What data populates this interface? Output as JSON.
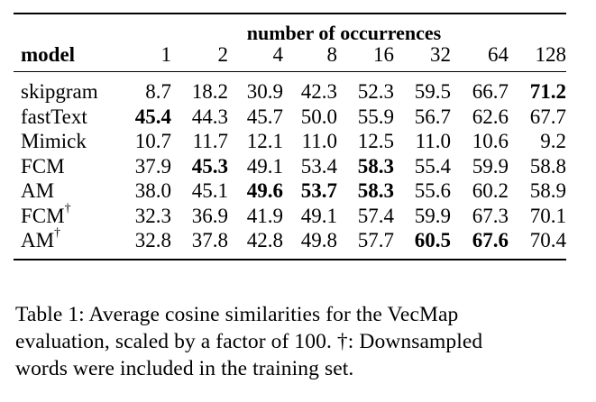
{
  "table": {
    "group_header": "number of occurrences",
    "model_header": "model",
    "columns": [
      "1",
      "2",
      "4",
      "8",
      "16",
      "32",
      "64",
      "128"
    ],
    "rows": [
      {
        "model": "skipgram",
        "dagger": "",
        "values": [
          "8.7",
          "18.2",
          "30.9",
          "42.3",
          "52.3",
          "59.5",
          "66.7",
          "71.2"
        ],
        "bold": [
          false,
          false,
          false,
          false,
          false,
          false,
          false,
          true
        ]
      },
      {
        "model": "fastText",
        "dagger": "",
        "values": [
          "45.4",
          "44.3",
          "45.7",
          "50.0",
          "55.9",
          "56.7",
          "62.6",
          "67.7"
        ],
        "bold": [
          true,
          false,
          false,
          false,
          false,
          false,
          false,
          false
        ]
      },
      {
        "model": "Mimick",
        "dagger": "",
        "values": [
          "10.7",
          "11.7",
          "12.1",
          "11.0",
          "12.5",
          "11.0",
          "10.6",
          "9.2"
        ],
        "bold": [
          false,
          false,
          false,
          false,
          false,
          false,
          false,
          false
        ]
      },
      {
        "model": "FCM",
        "dagger": "",
        "values": [
          "37.9",
          "45.3",
          "49.1",
          "53.4",
          "58.3",
          "55.4",
          "59.9",
          "58.8"
        ],
        "bold": [
          false,
          true,
          false,
          false,
          true,
          false,
          false,
          false
        ]
      },
      {
        "model": "AM",
        "dagger": "",
        "values": [
          "38.0",
          "45.1",
          "49.6",
          "53.7",
          "58.3",
          "55.6",
          "60.2",
          "58.9"
        ],
        "bold": [
          false,
          false,
          true,
          true,
          true,
          false,
          false,
          false
        ]
      },
      {
        "model": "FCM",
        "dagger": "†",
        "values": [
          "32.3",
          "36.9",
          "41.9",
          "49.1",
          "57.4",
          "59.9",
          "67.3",
          "70.1"
        ],
        "bold": [
          false,
          false,
          false,
          false,
          false,
          false,
          false,
          false
        ]
      },
      {
        "model": "AM",
        "dagger": "†",
        "values": [
          "32.8",
          "37.8",
          "42.8",
          "49.8",
          "57.7",
          "60.5",
          "67.6",
          "70.4"
        ],
        "bold": [
          false,
          false,
          false,
          false,
          false,
          true,
          true,
          false
        ]
      }
    ]
  },
  "caption": {
    "line1": "Table 1:  Average cosine similarities for the VecMap",
    "line2": "evaluation, scaled by a factor of 100. †: Downsampled",
    "line3": "words were included in the training set."
  }
}
